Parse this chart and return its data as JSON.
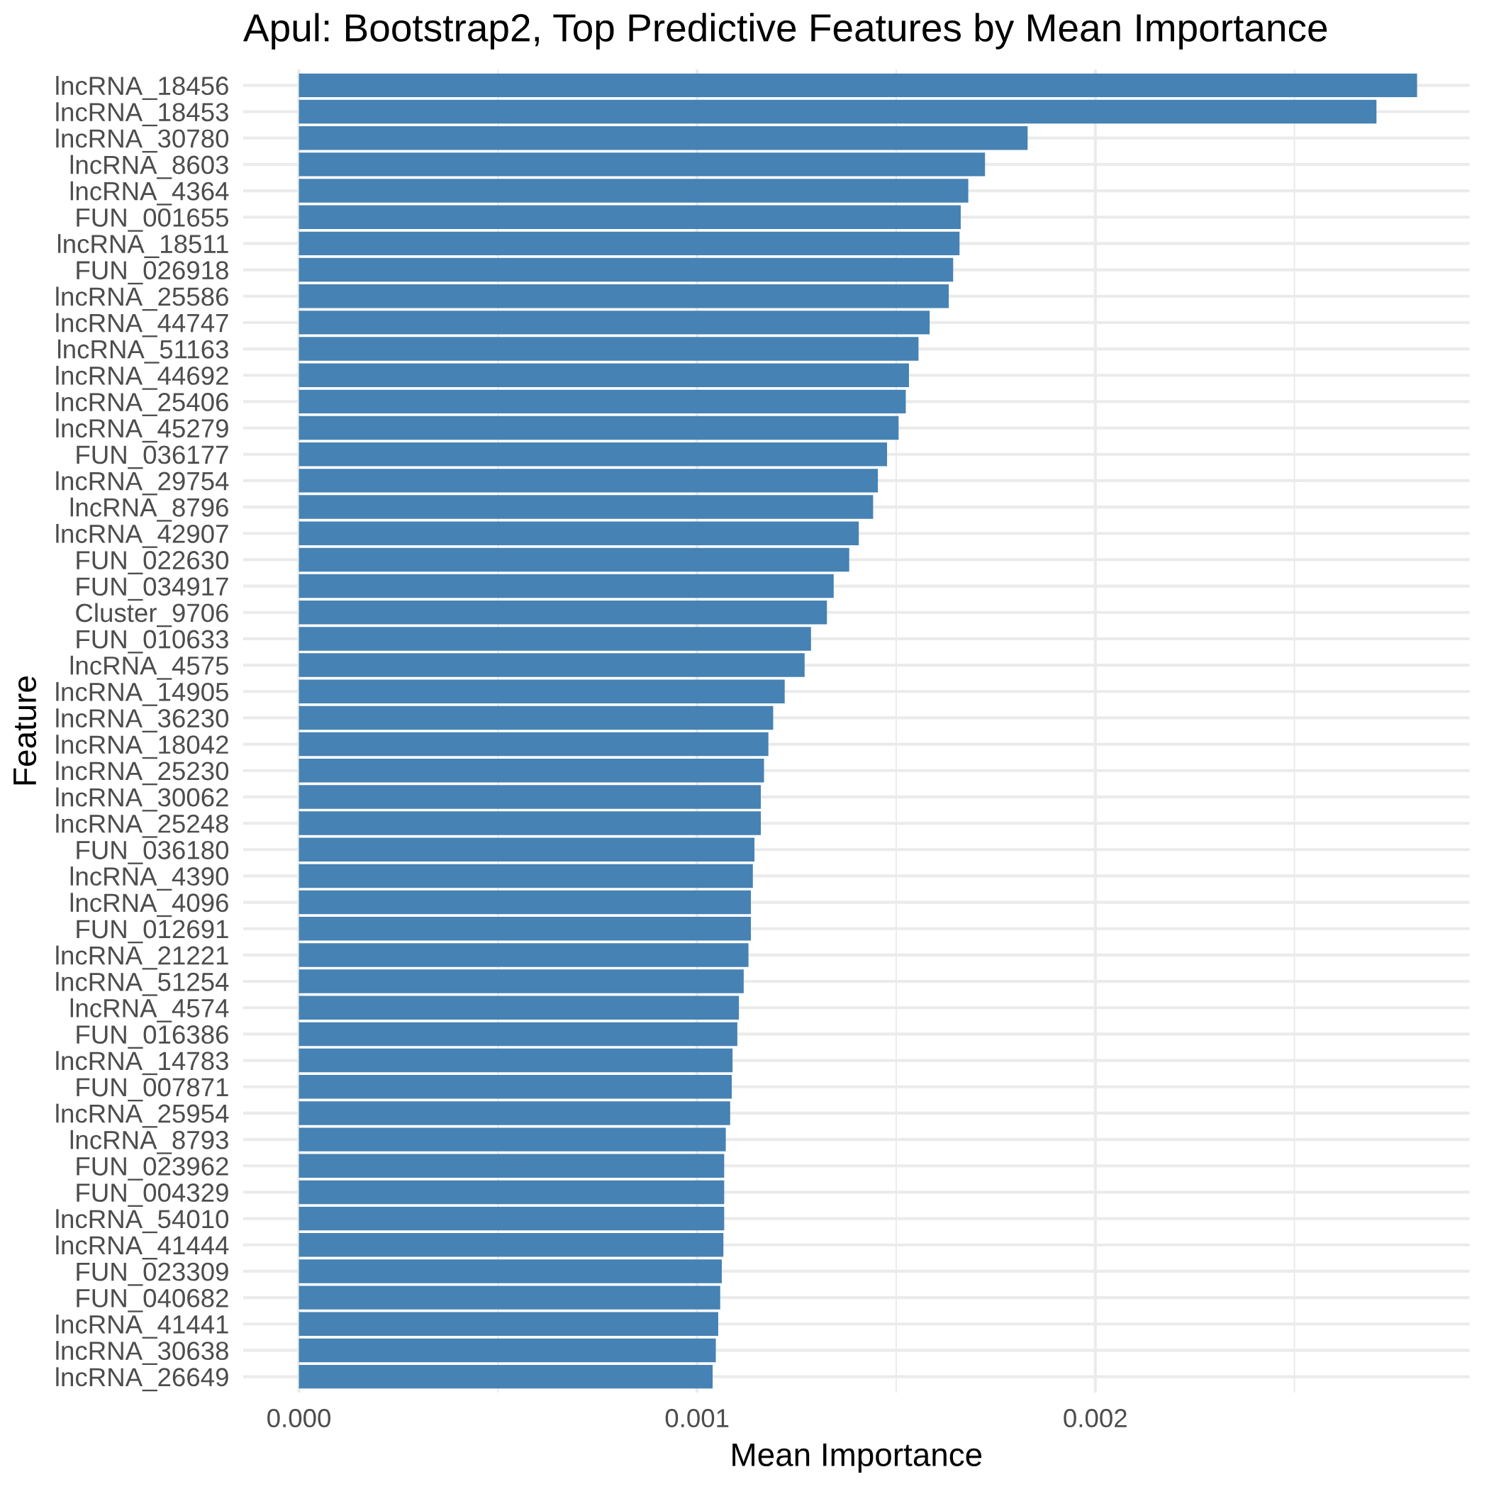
{
  "chart_data": {
    "type": "bar",
    "orientation": "horizontal",
    "title": "Apul: Bootstrap2, Top Predictive Features by Mean Importance",
    "xlabel": "Mean Importance",
    "ylabel": "Feature",
    "categories": [
      "lncRNA_18456",
      "lncRNA_18453",
      "lncRNA_30780",
      "lncRNA_8603",
      "lncRNA_4364",
      "FUN_001655",
      "lncRNA_18511",
      "FUN_026918",
      "lncRNA_25586",
      "lncRNA_44747",
      "lncRNA_51163",
      "lncRNA_44692",
      "lncRNA_25406",
      "lncRNA_45279",
      "FUN_036177",
      "lncRNA_29754",
      "lncRNA_8796",
      "lncRNA_42907",
      "FUN_022630",
      "FUN_034917",
      "Cluster_9706",
      "FUN_010633",
      "lncRNA_4575",
      "lncRNA_14905",
      "lncRNA_36230",
      "lncRNA_18042",
      "lncRNA_25230",
      "lncRNA_30062",
      "lncRNA_25248",
      "FUN_036180",
      "lncRNA_4390",
      "lncRNA_4096",
      "FUN_012691",
      "lncRNA_21221",
      "lncRNA_51254",
      "lncRNA_4574",
      "FUN_016386",
      "lncRNA_14783",
      "FUN_007871",
      "lncRNA_25954",
      "lncRNA_8793",
      "FUN_023962",
      "FUN_004329",
      "lncRNA_54010",
      "lncRNA_41444",
      "FUN_023309",
      "FUN_040682",
      "lncRNA_41441",
      "lncRNA_30638",
      "lncRNA_26649"
    ],
    "values": [
      0.002808,
      0.002706,
      0.00183,
      0.001723,
      0.001681,
      0.001662,
      0.001659,
      0.001643,
      0.001632,
      0.001584,
      0.001556,
      0.001532,
      0.001524,
      0.001506,
      0.001477,
      0.001454,
      0.001442,
      0.001406,
      0.001382,
      0.001343,
      0.001326,
      0.001286,
      0.00127,
      0.00122,
      0.001191,
      0.001179,
      0.001168,
      0.00116,
      0.00116,
      0.001144,
      0.00114,
      0.001135,
      0.001135,
      0.001129,
      0.001117,
      0.001105,
      0.001101,
      0.001089,
      0.001087,
      0.001083,
      0.001072,
      0.001068,
      0.001068,
      0.001068,
      0.001066,
      0.001062,
      0.001058,
      0.001053,
      0.001047,
      0.001039
    ],
    "color": "#4682b4",
    "xlim": [
      -0.00014,
      0.00294
    ],
    "xticks": [
      {
        "value": 0,
        "label": "0.000"
      },
      {
        "value": 0.0005,
        "label": null
      },
      {
        "value": 0.001,
        "label": "0.001"
      },
      {
        "value": 0.0015,
        "label": null
      },
      {
        "value": 0.002,
        "label": "0.002"
      },
      {
        "value": 0.0025,
        "label": null
      }
    ],
    "grid": true
  }
}
